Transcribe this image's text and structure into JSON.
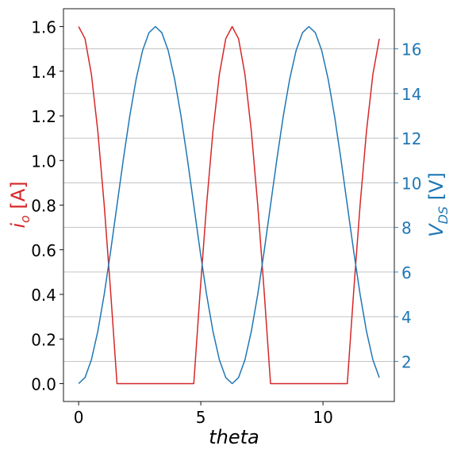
{
  "chart_data": {
    "type": "line",
    "xlabel": "theta",
    "ylabel_left": {
      "base": "i",
      "sub": "o",
      "unit": " [A]"
    },
    "ylabel_right": {
      "base": "V",
      "sub": "DS",
      "unit": " [V]"
    },
    "x": [
      0,
      0.2618,
      0.5236,
      0.7854,
      1.0472,
      1.309,
      1.5708,
      1.8326,
      2.0944,
      2.3562,
      2.618,
      2.8798,
      3.1416,
      3.4034,
      3.6652,
      3.927,
      4.1888,
      4.4506,
      4.7124,
      4.9742,
      5.236,
      5.4978,
      5.7596,
      6.0214,
      6.2832,
      6.545,
      6.8068,
      7.0686,
      7.3304,
      7.5922,
      7.854,
      8.1158,
      8.3776,
      8.6394,
      8.9012,
      9.163,
      9.4248,
      9.6866,
      9.9484,
      10.2102,
      10.472,
      10.7338,
      10.9956,
      11.2574,
      11.5192,
      11.781,
      12.0428,
      12.3046
    ],
    "xlim": [
      -0.62,
      12.92
    ],
    "xticks": [
      0,
      5,
      10
    ],
    "xtick_labels": [
      "0",
      "5",
      "10"
    ],
    "left_axis": {
      "color": "#d62728",
      "ylim": [
        -0.08,
        1.68
      ],
      "ticks": [
        0.0,
        0.2,
        0.4,
        0.6,
        0.8,
        1.0,
        1.2,
        1.4,
        1.6
      ],
      "tick_labels": [
        "0.0",
        "0.2",
        "0.4",
        "0.6",
        "0.8",
        "1.0",
        "1.2",
        "1.4",
        "1.6"
      ]
    },
    "right_axis": {
      "color": "#1f77b4",
      "ylim": [
        0.2,
        17.8
      ],
      "ticks": [
        2,
        4,
        6,
        8,
        10,
        12,
        14,
        16
      ],
      "tick_labels": [
        "2",
        "4",
        "6",
        "8",
        "10",
        "12",
        "14",
        "16"
      ],
      "grid": true
    },
    "series": [
      {
        "axis": "left",
        "color": "#d62728",
        "values": [
          1.6,
          1.5455,
          1.3856,
          1.1314,
          0.8,
          0.4141,
          0,
          0,
          0,
          0,
          0,
          0,
          0,
          0,
          0,
          0,
          0,
          0,
          0,
          0.4141,
          0.8,
          1.1314,
          1.3856,
          1.5455,
          1.6,
          1.5455,
          1.3856,
          1.1314,
          0.8,
          0.4141,
          0,
          0,
          0,
          0,
          0,
          0,
          0,
          0,
          0,
          0,
          0,
          0,
          0,
          0.4141,
          0.8,
          1.1314,
          1.3856,
          1.5455
        ]
      },
      {
        "axis": "right",
        "color": "#1f77b4",
        "values": [
          1.0,
          1.2727,
          2.0718,
          3.3431,
          5.0,
          6.9294,
          9.0,
          11.0706,
          13.0,
          14.6569,
          15.9282,
          16.7274,
          17.0,
          16.7274,
          15.9282,
          14.6569,
          13.0,
          11.0706,
          9.0,
          6.9294,
          5.0,
          3.3431,
          2.0718,
          1.2727,
          1.0,
          1.2727,
          2.0718,
          3.3431,
          5.0,
          6.9294,
          9.0,
          11.0706,
          13.0,
          14.6569,
          15.9282,
          16.7274,
          17.0,
          16.7274,
          15.9282,
          14.6569,
          13.0,
          11.0706,
          9.0,
          6.9294,
          5.0,
          3.3431,
          2.0718,
          1.2727
        ]
      }
    ]
  }
}
